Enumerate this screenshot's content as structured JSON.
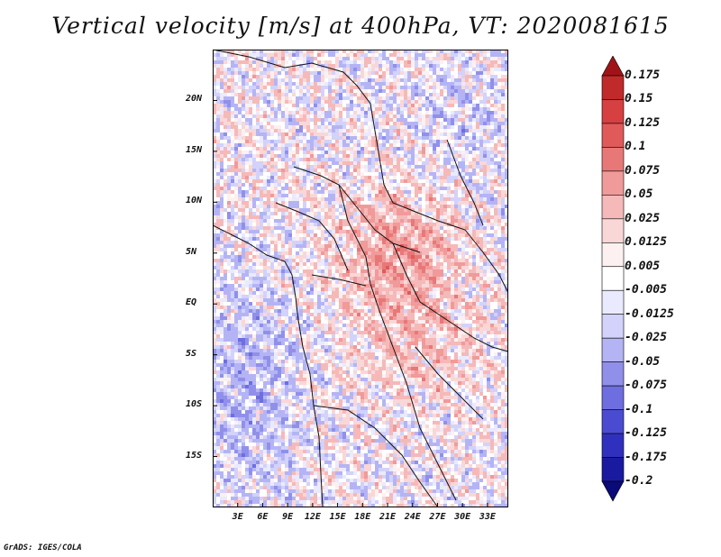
{
  "title": "Vertical velocity [m/s] at 400hPa, VT: 2020081615",
  "footer": "GrADS: IGES/COLA",
  "map": {
    "lat_range": [
      -20,
      25
    ],
    "lon_range": [
      0,
      35.5
    ],
    "lat_ticks": [
      {
        "value": 20,
        "label": "20N"
      },
      {
        "value": 15,
        "label": "15N"
      },
      {
        "value": 10,
        "label": "10N"
      },
      {
        "value": 5,
        "label": "5N"
      },
      {
        "value": 0,
        "label": "EQ"
      },
      {
        "value": -5,
        "label": "5S"
      },
      {
        "value": -10,
        "label": "10S"
      },
      {
        "value": -15,
        "label": "15S"
      }
    ],
    "lon_ticks": [
      {
        "value": 3,
        "label": "3E"
      },
      {
        "value": 6,
        "label": "6E"
      },
      {
        "value": 9,
        "label": "9E"
      },
      {
        "value": 12,
        "label": "12E"
      },
      {
        "value": 15,
        "label": "15E"
      },
      {
        "value": 18,
        "label": "18E"
      },
      {
        "value": 21,
        "label": "21E"
      },
      {
        "value": 24,
        "label": "24E"
      },
      {
        "value": 27,
        "label": "27E"
      },
      {
        "value": 30,
        "label": "30E"
      },
      {
        "value": 33,
        "label": "33E"
      }
    ]
  },
  "colorbar": {
    "labels": [
      "0.175",
      "0.15",
      "0.125",
      "0.1",
      "0.075",
      "0.05",
      "0.025",
      "0.0125",
      "0.005",
      "-0.005",
      "-0.0125",
      "-0.025",
      "-0.05",
      "-0.075",
      "-0.1",
      "-0.125",
      "-0.175",
      "-0.2"
    ],
    "colors": [
      "#a01418",
      "#c02a2a",
      "#d64040",
      "#e05a5a",
      "#e87878",
      "#f09a9a",
      "#f5b9b9",
      "#fad7d7",
      "#fdf0f0",
      "#ffffff",
      "#eaeaff",
      "#d2d2fa",
      "#b4b4f5",
      "#9090ea",
      "#6e6ee0",
      "#4b4bd2",
      "#3030be",
      "#1a1aa0",
      "#0a0a78"
    ]
  }
}
